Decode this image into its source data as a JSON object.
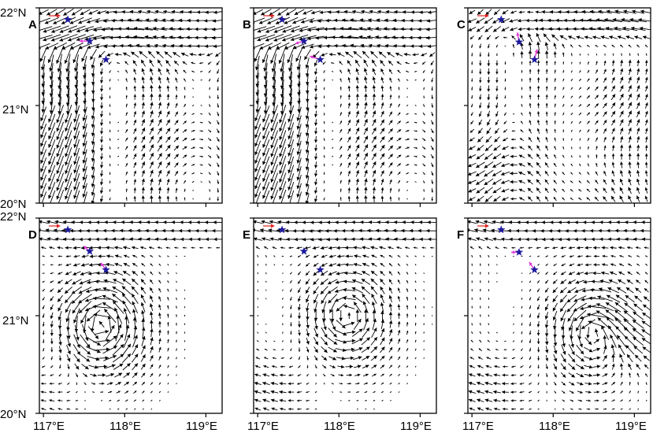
{
  "figure": {
    "y_labels": [
      "22°N",
      "21°N",
      "20°N"
    ],
    "x_labels": [
      "117°E",
      "118°E",
      "119°E"
    ],
    "colors": {
      "vectors": "#000000",
      "reference_vector": "#e0211d",
      "station": "#1d1a9e",
      "observed_vector": "#e23ad6",
      "frame": "#000000",
      "background": "#ffffff"
    },
    "icons": {
      "station": "star-icon"
    },
    "map_extent": {
      "lon": [
        116.95,
        119.2
      ],
      "lat": [
        20.0,
        22.0
      ]
    },
    "panels": [
      {
        "id": "A",
        "letter": "A",
        "flow": "jet_west",
        "stations": [
          {
            "lon": 117.3,
            "lat": 21.88
          },
          {
            "lon": 117.57,
            "lat": 21.66
          },
          {
            "lon": 117.77,
            "lat": 21.47
          }
        ],
        "obs": [
          {
            "lon": 117.57,
            "lat": 21.66,
            "u": -0.6,
            "v": 0.0
          }
        ]
      },
      {
        "id": "B",
        "letter": "B",
        "flow": "jet_west",
        "stations": [
          {
            "lon": 117.3,
            "lat": 21.88
          },
          {
            "lon": 117.57,
            "lat": 21.66
          },
          {
            "lon": 117.77,
            "lat": 21.47
          }
        ],
        "obs": [
          {
            "lon": 117.57,
            "lat": 21.66,
            "u": -0.5,
            "v": -0.15
          },
          {
            "lon": 117.77,
            "lat": 21.47,
            "u": -0.6,
            "v": 0.2
          }
        ]
      },
      {
        "id": "C",
        "letter": "C",
        "flow": "jet_north",
        "stations": [
          {
            "lon": 117.36,
            "lat": 21.88
          },
          {
            "lon": 117.58,
            "lat": 21.65
          },
          {
            "lon": 117.77,
            "lat": 21.47
          }
        ],
        "obs": [
          {
            "lon": 117.58,
            "lat": 21.65,
            "u": -0.1,
            "v": 0.55
          },
          {
            "lon": 117.77,
            "lat": 21.47,
            "u": 0.15,
            "v": 0.6
          }
        ]
      },
      {
        "id": "D",
        "letter": "D",
        "flow": "eddy_left",
        "stations": [
          {
            "lon": 117.3,
            "lat": 21.88
          },
          {
            "lon": 117.57,
            "lat": 21.66
          },
          {
            "lon": 117.77,
            "lat": 21.47
          }
        ],
        "obs": [
          {
            "lon": 117.57,
            "lat": 21.66,
            "u": -0.35,
            "v": 0.3
          },
          {
            "lon": 117.77,
            "lat": 21.47,
            "u": -0.3,
            "v": 0.4
          }
        ]
      },
      {
        "id": "E",
        "letter": "E",
        "flow": "eddy_center",
        "stations": [
          {
            "lon": 117.3,
            "lat": 21.88
          },
          {
            "lon": 117.57,
            "lat": 21.66
          },
          {
            "lon": 117.77,
            "lat": 21.47
          }
        ],
        "obs": []
      },
      {
        "id": "F",
        "letter": "F",
        "flow": "eddy_east",
        "stations": [
          {
            "lon": 117.36,
            "lat": 21.88
          },
          {
            "lon": 117.58,
            "lat": 21.65
          },
          {
            "lon": 117.77,
            "lat": 21.47
          }
        ],
        "obs": [
          {
            "lon": 117.58,
            "lat": 21.65,
            "u": -0.45,
            "v": 0.0
          },
          {
            "lon": 117.77,
            "lat": 21.47,
            "u": -0.3,
            "v": 0.45
          }
        ]
      }
    ]
  }
}
